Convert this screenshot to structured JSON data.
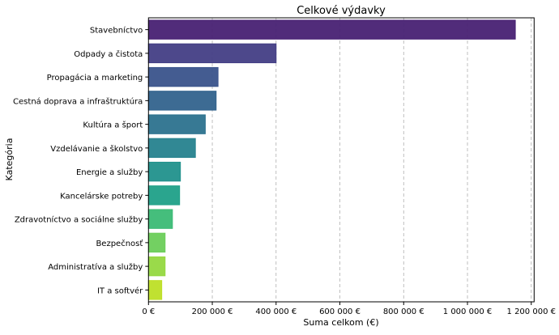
{
  "chart_data": {
    "type": "bar",
    "orientation": "horizontal",
    "title": "Celkové výdavky",
    "xlabel": "Suma celkom (€)",
    "ylabel": "Kategória",
    "xlim": [
      0,
      1209000
    ],
    "grid": "x-dashed",
    "xticks": [
      0,
      200000,
      400000,
      600000,
      800000,
      1000000,
      1200000
    ],
    "xtick_labels": [
      "0 €",
      "200 000 €",
      "400 000 €",
      "600 000 €",
      "800 000 €",
      "1 000 000 €",
      "1 200 000 €"
    ],
    "categories": [
      "Stavebníctvo",
      "Odpady a čistota",
      "Propagácia a marketing",
      "Cestná doprava a infraštruktúra",
      "Kultúra a šport",
      "Vzdelávanie a školstvo",
      "Energie a služby",
      "Kancelárske potreby",
      "Zdravotníctvo a sociálne služby",
      "Bezpečnosť",
      "Administratíva a služby",
      "IT a softvér"
    ],
    "values": [
      1150000,
      400000,
      218000,
      212000,
      178000,
      147000,
      100000,
      97500,
      75000,
      52000,
      52000,
      41500
    ],
    "colors": [
      "#482173",
      "#433e85",
      "#3a538b",
      "#33638d",
      "#2c728e",
      "#26828e",
      "#21918c",
      "#1fa088",
      "#3bbb75",
      "#6ccd5a",
      "#95d840",
      "#bddf26"
    ]
  }
}
